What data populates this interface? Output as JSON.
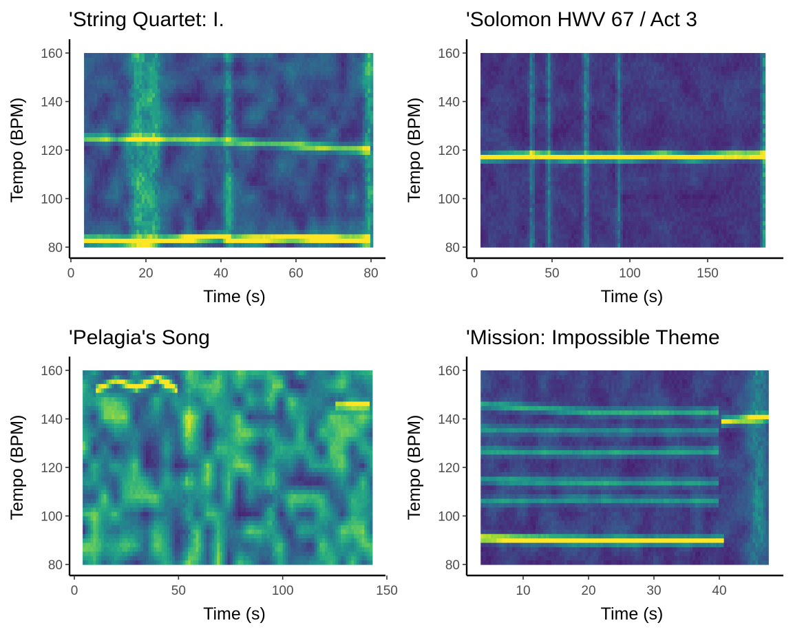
{
  "chart_data": [
    {
      "type": "heatmap",
      "title": "'String Quartet: I.",
      "xlabel": "Time (s)",
      "ylabel": "Tempo (BPM)",
      "x_range": [
        3.5,
        80.5
      ],
      "y_range": [
        80,
        160
      ],
      "x_ticks": [
        0,
        20,
        40,
        60,
        80
      ],
      "y_ticks": [
        80,
        100,
        120,
        140,
        160
      ],
      "colormap": "viridis",
      "seed": 11,
      "ridges": [
        {
          "label": "tempo track",
          "points": [
            [
              3.5,
              83
            ],
            [
              20,
              82.5
            ],
            [
              40,
              84.5
            ],
            [
              43,
              83
            ],
            [
              60,
              84
            ],
            [
              80,
              83
            ]
          ],
          "strength": 1.0
        },
        {
          "label": "secondary track",
          "points": [
            [
              3.5,
              125
            ],
            [
              40,
              124
            ],
            [
              60,
              122
            ],
            [
              80,
              120
            ]
          ],
          "strength": 0.55
        }
      ],
      "vertical_bands": [
        {
          "x": 18,
          "width": 2.5,
          "strength": 0.75
        },
        {
          "x": 22,
          "width": 2,
          "strength": 0.6
        },
        {
          "x": 42,
          "width": 1.2,
          "strength": 0.6
        },
        {
          "x": 79.5,
          "width": 1.5,
          "strength": 0.8
        }
      ],
      "noise_level": 0.32
    },
    {
      "type": "heatmap",
      "title": "'Solomon HWV 67 / Act 3",
      "xlabel": "Time (s)",
      "ylabel": "Tempo (BPM)",
      "x_range": [
        4,
        187
      ],
      "y_range": [
        80,
        160
      ],
      "x_ticks": [
        0,
        50,
        100,
        150
      ],
      "y_ticks": [
        80,
        100,
        120,
        140,
        160
      ],
      "colormap": "viridis",
      "seed": 23,
      "ridges": [
        {
          "label": "tempo track",
          "points": [
            [
              4,
              117
            ],
            [
              20,
              117.5
            ],
            [
              40,
              118
            ],
            [
              60,
              117
            ],
            [
              80,
              117.5
            ],
            [
              100,
              117
            ],
            [
              120,
              118
            ],
            [
              140,
              117
            ],
            [
              160,
              118
            ],
            [
              187,
              118
            ]
          ],
          "strength": 1.0
        }
      ],
      "vertical_bands": [
        {
          "x": 37,
          "width": 1.5,
          "strength": 0.55
        },
        {
          "x": 48,
          "width": 1.5,
          "strength": 0.5
        },
        {
          "x": 72,
          "width": 2,
          "strength": 0.6
        },
        {
          "x": 93,
          "width": 1.5,
          "strength": 0.5
        },
        {
          "x": 186,
          "width": 1.5,
          "strength": 0.8
        }
      ],
      "noise_level": 0.12
    },
    {
      "type": "heatmap",
      "title": "'Pelagia's Song",
      "xlabel": "Time (s)",
      "ylabel": "Tempo (BPM)",
      "x_range": [
        4,
        143
      ],
      "y_range": [
        80,
        160
      ],
      "x_ticks": [
        0,
        50,
        100,
        150
      ],
      "y_ticks": [
        80,
        100,
        120,
        140,
        160
      ],
      "colormap": "viridis",
      "seed": 37,
      "ridges": [
        {
          "label": "upper track",
          "points": [
            [
              10,
              152
            ],
            [
              20,
              156
            ],
            [
              30,
              153
            ],
            [
              40,
              157
            ],
            [
              50,
              152
            ]
          ],
          "strength": 0.8
        },
        {
          "label": "right track",
          "points": [
            [
              125,
              146
            ],
            [
              142,
              146
            ]
          ],
          "strength": 0.6
        }
      ],
      "vertical_bands": [
        {
          "x": 55,
          "width": 3,
          "strength": 0.35
        },
        {
          "x": 95,
          "width": 3,
          "strength": 0.35
        }
      ],
      "noise_level": 0.72
    },
    {
      "type": "heatmap",
      "title": "'Mission: Impossible Theme",
      "xlabel": "Time (s)",
      "ylabel": "Tempo (BPM)",
      "x_range": [
        3.5,
        47.5
      ],
      "y_range": [
        80,
        160
      ],
      "x_ticks": [
        10,
        20,
        30,
        40
      ],
      "y_ticks": [
        80,
        100,
        120,
        140,
        160
      ],
      "colormap": "viridis",
      "seed": 51,
      "ridges": [
        {
          "label": "tempo track",
          "points": [
            [
              3.5,
              91
            ],
            [
              20,
              90
            ],
            [
              40,
              90
            ],
            [
              40.5,
              90
            ]
          ],
          "strength": 1.0
        },
        {
          "label": "band 144",
          "points": [
            [
              3.5,
              146
            ],
            [
              20,
              143
            ],
            [
              40,
              143
            ]
          ],
          "strength": 0.45
        },
        {
          "label": "band 126",
          "points": [
            [
              3.5,
              127
            ],
            [
              20,
              126
            ],
            [
              40,
              127
            ]
          ],
          "strength": 0.4
        },
        {
          "label": "band 116",
          "points": [
            [
              3.5,
              115
            ],
            [
              20,
              114
            ],
            [
              40,
              114
            ]
          ],
          "strength": 0.38
        },
        {
          "label": "band 107",
          "points": [
            [
              3.5,
              106
            ],
            [
              20,
              107
            ],
            [
              40,
              106
            ]
          ],
          "strength": 0.35
        },
        {
          "label": "band 135",
          "points": [
            [
              3.5,
              136
            ],
            [
              20,
              135
            ],
            [
              40,
              135
            ]
          ],
          "strength": 0.3
        },
        {
          "label": "late track",
          "points": [
            [
              40.5,
              139
            ],
            [
              47.5,
              141
            ]
          ],
          "strength": 0.75
        }
      ],
      "vertical_bands": [
        {
          "x": 46,
          "width": 1.5,
          "strength": 0.5
        }
      ],
      "noise_level": 0.18
    }
  ]
}
